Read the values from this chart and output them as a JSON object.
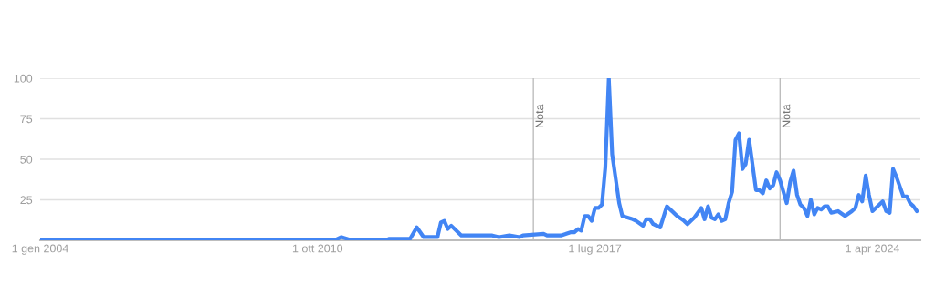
{
  "chart_data": {
    "type": "line",
    "x": [
      "2004-01",
      "2011-03",
      "2011-05",
      "2011-08",
      "2012-06",
      "2012-07",
      "2012-09",
      "2013-01",
      "2013-03",
      "2013-05",
      "2013-09",
      "2013-10",
      "2013-11",
      "2013-12",
      "2014-01",
      "2014-04",
      "2015-01",
      "2015-03",
      "2015-06",
      "2015-09",
      "2015-10",
      "2016-04",
      "2016-05",
      "2016-09",
      "2016-12",
      "2017-01",
      "2017-02",
      "2017-03",
      "2017-04",
      "2017-05",
      "2017-06",
      "2017-07",
      "2017-08",
      "2017-09",
      "2017-10",
      "2017-11",
      "2017-12",
      "2018-02",
      "2018-03",
      "2018-06",
      "2018-07",
      "2018-09",
      "2018-10",
      "2018-11",
      "2018-12",
      "2019-02",
      "2019-04",
      "2019-07",
      "2019-09",
      "2019-10",
      "2019-12",
      "2020-02",
      "2020-03",
      "2020-04",
      "2020-05",
      "2020-06",
      "2020-07",
      "2020-08",
      "2020-09",
      "2020-10",
      "2020-11",
      "2020-12",
      "2021-01",
      "2021-02",
      "2021-03",
      "2021-04",
      "2021-06",
      "2021-07",
      "2021-08",
      "2021-09",
      "2021-10",
      "2021-11",
      "2021-12",
      "2022-01",
      "2022-03",
      "2022-04",
      "2022-05",
      "2022-06",
      "2022-07",
      "2022-08",
      "2022-09",
      "2022-10",
      "2022-11",
      "2022-12",
      "2023-01",
      "2023-02",
      "2023-03",
      "2023-04",
      "2023-06",
      "2023-08",
      "2023-10",
      "2023-11",
      "2023-12",
      "2024-01",
      "2024-02",
      "2024-03",
      "2024-04",
      "2024-07",
      "2024-08",
      "2024-09",
      "2024-10",
      "2024-11",
      "2025-01",
      "2025-02",
      "2025-03",
      "2025-04",
      "2025-05"
    ],
    "series": [
      {
        "color": "#4285f4",
        "values": [
          0,
          0,
          2,
          0,
          0,
          1,
          1,
          1,
          8,
          2,
          2,
          11,
          12,
          7,
          9,
          3,
          3,
          2,
          3,
          2,
          3,
          4,
          3,
          3,
          5,
          5,
          7,
          6,
          15,
          15,
          12,
          20,
          20,
          22,
          45,
          100,
          53,
          23,
          15,
          13,
          12,
          9,
          13,
          13,
          10,
          8,
          21,
          15,
          12,
          10,
          14,
          20,
          13,
          21,
          14,
          13,
          16,
          12,
          13,
          23,
          30,
          62,
          66,
          44,
          47,
          62,
          31,
          31,
          29,
          37,
          32,
          34,
          42,
          37,
          23,
          36,
          43,
          28,
          22,
          20,
          15,
          25,
          16,
          20,
          19,
          21,
          21,
          17,
          18,
          15,
          18,
          20,
          28,
          24,
          40,
          28,
          18,
          24,
          18,
          17,
          44,
          39,
          27,
          27,
          23,
          21,
          18
        ]
      }
    ],
    "xlim": [
      "2004-01-01",
      "2025-06-01"
    ],
    "xticks": [
      {
        "value": "2004-01-01",
        "label": "1 gen 2004"
      },
      {
        "value": "2010-10-01",
        "label": "1 ott 2010"
      },
      {
        "value": "2017-07-01",
        "label": "1 lug 2017"
      },
      {
        "value": "2024-04-01",
        "label": "1 apr 2024"
      }
    ],
    "ylim": [
      0,
      100
    ],
    "yticks": [
      25,
      50,
      75,
      100
    ],
    "grid": "y",
    "line_style": "solid",
    "marker": "none",
    "ref_lines": [
      {
        "axis": "x",
        "value": "2016-01-01",
        "label": "Nota",
        "color": "#bdbdbd"
      },
      {
        "axis": "x",
        "value": "2022-01-01",
        "label": "Nota",
        "color": "#bdbdbd"
      }
    ]
  }
}
